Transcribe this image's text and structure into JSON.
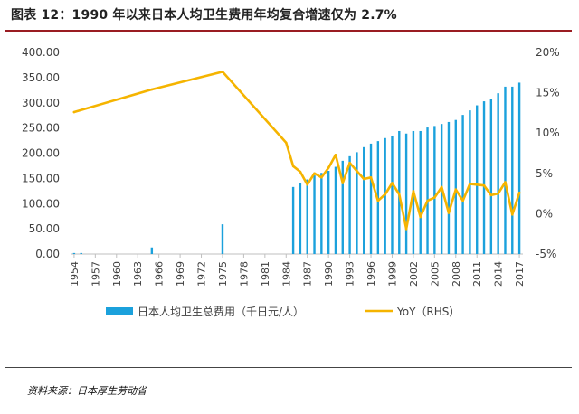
{
  "title": "图表 12：1990 年以来日本人均卫生费用年均复合增速仅为 2.7%",
  "source": "资料来源：日本厚生劳动省",
  "chart_data": {
    "type": "bar+line",
    "title": "图表 12：1990 年以来日本人均卫生费用年均复合增速仅为 2.7%",
    "x_tick_labels": [
      "1954",
      "1957",
      "1960",
      "1963",
      "1966",
      "1969",
      "1972",
      "1975",
      "1978",
      "1981",
      "1984",
      "1987",
      "1990",
      "1993",
      "1996",
      "1999",
      "2002",
      "2005",
      "2008",
      "2011",
      "2014",
      "2017"
    ],
    "left_axis": {
      "ylim": [
        0,
        400
      ],
      "ticks": [
        "0.00",
        "50.00",
        "100.00",
        "150.00",
        "200.00",
        "250.00",
        "300.00",
        "350.00",
        "400.00"
      ],
      "tick_values": [
        0,
        50,
        100,
        150,
        200,
        250,
        300,
        350,
        400
      ]
    },
    "right_axis": {
      "ylim": [
        -5,
        20
      ],
      "ticks": [
        "-5%",
        "0%",
        "5%",
        "10%",
        "15%",
        "20%"
      ],
      "tick_values": [
        -5,
        0,
        5,
        10,
        15,
        20
      ]
    },
    "legend": {
      "position": "bottom",
      "bar_label": "日本人均卫生总费用（千日元/人）",
      "line_label": "YoY（RHS）"
    },
    "colors": {
      "bar": "#1ba1dc",
      "line": "#f5b400",
      "axis": "#bfbfbf",
      "text": "#404040"
    },
    "bars": {
      "name": "日本人均卫生总费用（千日元/人）",
      "x": [
        1954,
        1955,
        1965,
        1975,
        1985,
        1986,
        1987,
        1988,
        1989,
        1990,
        1991,
        1992,
        1993,
        1994,
        1995,
        1996,
        1997,
        1998,
        1999,
        2000,
        2001,
        2002,
        2003,
        2004,
        2005,
        2006,
        2007,
        2008,
        2009,
        2010,
        2011,
        2012,
        2013,
        2014,
        2015,
        2016,
        2017
      ],
      "values": [
        2,
        2,
        13,
        59,
        133,
        140,
        148,
        156,
        161,
        165,
        173,
        185,
        194,
        202,
        212,
        219,
        224,
        230,
        235,
        244,
        239,
        244,
        244,
        251,
        254,
        258,
        262,
        266,
        276,
        285,
        295,
        303,
        307,
        319,
        332,
        332,
        340
      ]
    },
    "line": {
      "name": "YoY（RHS）",
      "axis": "right",
      "x": [
        1954,
        1965,
        1975,
        1984,
        1985,
        1986,
        1987,
        1988,
        1989,
        1990,
        1991,
        1992,
        1993,
        1994,
        1995,
        1996,
        1997,
        1998,
        1999,
        2000,
        2001,
        2002,
        2003,
        2004,
        2005,
        2006,
        2007,
        2008,
        2009,
        2010,
        2011,
        2012,
        2013,
        2014,
        2015,
        2016,
        2017
      ],
      "values": [
        12.6,
        15.4,
        17.6,
        8.8,
        5.9,
        5.2,
        3.6,
        5.0,
        4.5,
        5.7,
        7.3,
        3.8,
        6.3,
        5.3,
        4.3,
        4.5,
        1.6,
        2.4,
        3.8,
        2.4,
        -1.9,
        2.8,
        -0.4,
        1.6,
        2.0,
        3.3,
        0.1,
        3.0,
        1.6,
        3.7,
        3.6,
        3.5,
        2.3,
        2.5,
        3.9,
        -0.1,
        2.6
      ]
    }
  }
}
